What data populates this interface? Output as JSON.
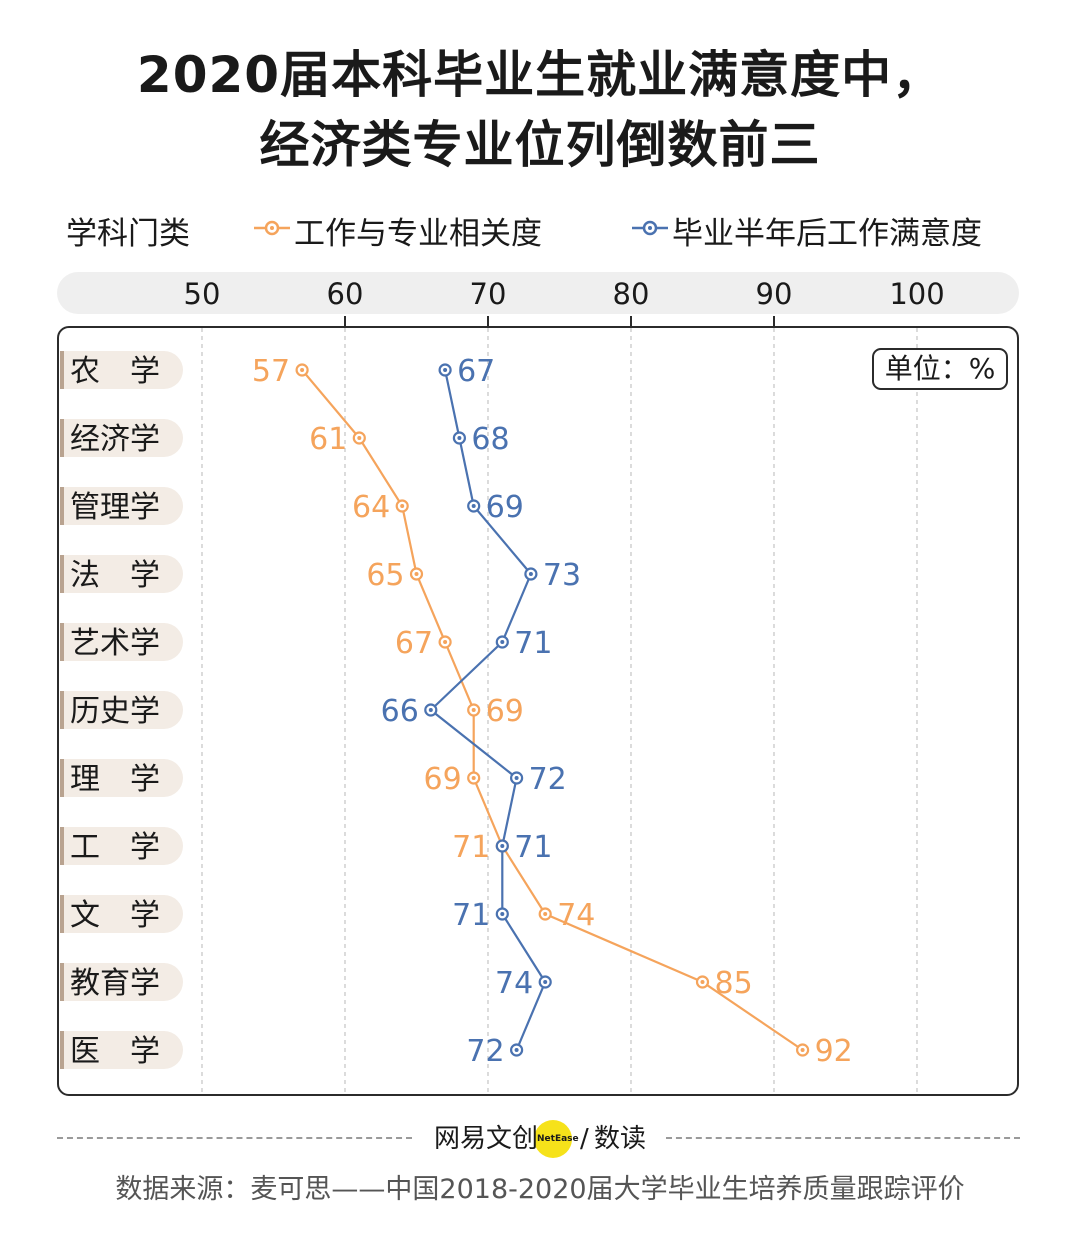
{
  "title_line1": "2020届本科毕业生就业满意度中，",
  "title_line2": "经济类专业位列倒数前三",
  "legend": {
    "category_label": "学科门类",
    "series1_label": "工作与专业相关度",
    "series2_label": "毕业半年后工作满意度"
  },
  "unit_label": "单位：%",
  "brand": {
    "name_a": "网易文创",
    "tag": "NetEase",
    "slash": "/",
    "name_b": "数读"
  },
  "source": "数据来源：麦可思——中国2018-2020届大学毕业生培养质量跟踪评价",
  "colors": {
    "series1": "#f5a45c",
    "series2": "#4a72b0",
    "label_bg": "#f3ece5",
    "label_edge": "#b9a390"
  },
  "chart_data": {
    "type": "line",
    "orientation": "horizontal-value-axis",
    "categories": [
      "农　学",
      "经济学",
      "管理学",
      "法　学",
      "艺术学",
      "历史学",
      "理　学",
      "工　学",
      "文　学",
      "教育学",
      "医　学"
    ],
    "x_ticks": [
      50,
      60,
      70,
      80,
      90,
      100
    ],
    "xlim": [
      50,
      100
    ],
    "series": [
      {
        "name": "工作与专业相关度",
        "values": [
          57,
          61,
          64,
          65,
          67,
          69,
          69,
          71,
          74,
          85,
          92
        ]
      },
      {
        "name": "毕业半年后工作满意度",
        "values": [
          67,
          68,
          69,
          73,
          71,
          66,
          72,
          71,
          71,
          74,
          72
        ]
      }
    ],
    "grid": "vertical dashed"
  }
}
